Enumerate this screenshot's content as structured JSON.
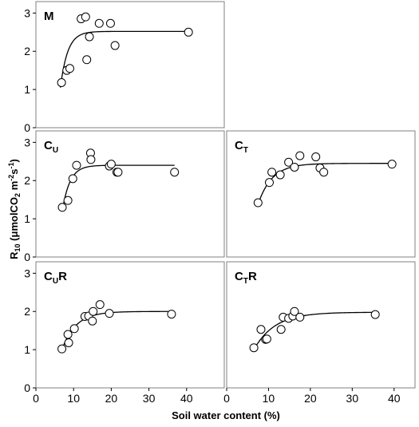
{
  "chart_data": [
    {
      "type": "scatter",
      "panel_label": "M",
      "label_main": "M",
      "label_sub": "",
      "label_suffix": "",
      "xlim": [
        0,
        50
      ],
      "ylim": [
        0,
        3.3
      ],
      "y_ticks": [
        "0",
        "1",
        "2",
        "3"
      ],
      "x_ticks": [],
      "points": [
        {
          "x": 6.8,
          "y": 1.18
        },
        {
          "x": 8.2,
          "y": 1.5
        },
        {
          "x": 9.0,
          "y": 1.55
        },
        {
          "x": 12.0,
          "y": 2.85
        },
        {
          "x": 13.2,
          "y": 2.9
        },
        {
          "x": 13.5,
          "y": 1.78
        },
        {
          "x": 14.2,
          "y": 2.38
        },
        {
          "x": 16.8,
          "y": 2.73
        },
        {
          "x": 19.8,
          "y": 2.73
        },
        {
          "x": 21.0,
          "y": 2.15
        },
        {
          "x": 40.5,
          "y": 2.5
        }
      ],
      "fit": {
        "x0": 6.5,
        "x1": 40.5,
        "asym": 2.52,
        "xbase": 6.5,
        "y0": 1.05,
        "k": 0.52
      }
    },
    {
      "type": "scatter",
      "panel_label": "CU",
      "label_main": "C",
      "label_sub": "U",
      "label_suffix": "",
      "xlim": [
        0,
        50
      ],
      "ylim": [
        0,
        3.3
      ],
      "y_ticks": [
        "0",
        "1",
        "2",
        "3"
      ],
      "x_ticks": [],
      "points": [
        {
          "x": 7.0,
          "y": 1.3
        },
        {
          "x": 8.5,
          "y": 1.48
        },
        {
          "x": 9.8,
          "y": 2.05
        },
        {
          "x": 10.8,
          "y": 2.4
        },
        {
          "x": 14.5,
          "y": 2.72
        },
        {
          "x": 14.6,
          "y": 2.55
        },
        {
          "x": 19.5,
          "y": 2.38
        },
        {
          "x": 20.0,
          "y": 2.43
        },
        {
          "x": 21.5,
          "y": 2.22
        },
        {
          "x": 21.8,
          "y": 2.22
        },
        {
          "x": 36.8,
          "y": 2.22
        }
      ],
      "fit": {
        "x0": 7.0,
        "x1": 36.8,
        "asym": 2.4,
        "xbase": 7.0,
        "y0": 1.2,
        "k": 0.5
      }
    },
    {
      "type": "scatter",
      "panel_label": "CT",
      "label_main": "C",
      "label_sub": "T",
      "label_suffix": "",
      "xlim": [
        0,
        45
      ],
      "ylim": [
        0,
        3.3
      ],
      "y_ticks": [],
      "x_ticks": [],
      "points": [
        {
          "x": 7.5,
          "y": 1.42
        },
        {
          "x": 10.2,
          "y": 1.95
        },
        {
          "x": 10.8,
          "y": 2.22
        },
        {
          "x": 12.8,
          "y": 2.15
        },
        {
          "x": 14.8,
          "y": 2.48
        },
        {
          "x": 16.2,
          "y": 2.35
        },
        {
          "x": 17.5,
          "y": 2.65
        },
        {
          "x": 21.3,
          "y": 2.62
        },
        {
          "x": 22.3,
          "y": 2.33
        },
        {
          "x": 23.2,
          "y": 2.22
        },
        {
          "x": 39.5,
          "y": 2.43
        }
      ],
      "fit": {
        "x0": 7.5,
        "x1": 39.5,
        "asym": 2.45,
        "xbase": 7.5,
        "y0": 1.38,
        "k": 0.3
      }
    },
    {
      "type": "scatter",
      "panel_label": "CUR",
      "label_main": "C",
      "label_sub": "U",
      "label_suffix": "R",
      "xlim": [
        0,
        50
      ],
      "ylim": [
        0,
        3.3
      ],
      "y_ticks": [
        "0",
        "1",
        "2",
        "3"
      ],
      "x_ticks": [
        "0",
        "10",
        "20",
        "30",
        "40"
      ],
      "points": [
        {
          "x": 6.9,
          "y": 1.02
        },
        {
          "x": 8.5,
          "y": 1.4
        },
        {
          "x": 8.7,
          "y": 1.18
        },
        {
          "x": 10.2,
          "y": 1.55
        },
        {
          "x": 13.0,
          "y": 1.87
        },
        {
          "x": 14.0,
          "y": 1.88
        },
        {
          "x": 15.0,
          "y": 1.75
        },
        {
          "x": 15.2,
          "y": 2.0
        },
        {
          "x": 17.0,
          "y": 2.18
        },
        {
          "x": 19.5,
          "y": 1.95
        },
        {
          "x": 36.0,
          "y": 1.93
        }
      ],
      "fit": {
        "x0": 6.9,
        "x1": 36.0,
        "asym": 2.0,
        "xbase": 6.9,
        "y0": 1.0,
        "k": 0.27
      }
    },
    {
      "type": "scatter",
      "panel_label": "CTR",
      "label_main": "C",
      "label_sub": "T",
      "label_suffix": "R",
      "xlim": [
        0,
        45
      ],
      "ylim": [
        0,
        3.3
      ],
      "y_ticks": [],
      "x_ticks": [
        "0",
        "10",
        "20",
        "30",
        "40"
      ],
      "points": [
        {
          "x": 6.5,
          "y": 1.05
        },
        {
          "x": 8.2,
          "y": 1.53
        },
        {
          "x": 9.3,
          "y": 1.27
        },
        {
          "x": 9.6,
          "y": 1.28
        },
        {
          "x": 13.0,
          "y": 1.53
        },
        {
          "x": 13.5,
          "y": 1.85
        },
        {
          "x": 14.8,
          "y": 1.82
        },
        {
          "x": 15.8,
          "y": 1.88
        },
        {
          "x": 16.2,
          "y": 2.0
        },
        {
          "x": 17.5,
          "y": 1.85
        },
        {
          "x": 35.5,
          "y": 1.92
        }
      ],
      "fit": {
        "x0": 6.5,
        "x1": 35.5,
        "asym": 1.98,
        "xbase": 6.5,
        "y0": 1.0,
        "k": 0.2
      }
    }
  ],
  "axes": {
    "ylabel_base": "R",
    "ylabel_sub": "10",
    "ylabel_unit_open": " (μmolCO",
    "ylabel_unit_sub": "2",
    "ylabel_unit_m": " m",
    "ylabel_unit_sup1": "-2",
    "ylabel_unit_s": "s",
    "ylabel_unit_sup2": "-1",
    "ylabel_close": ")",
    "xlabel": "Soil water content (%)"
  }
}
